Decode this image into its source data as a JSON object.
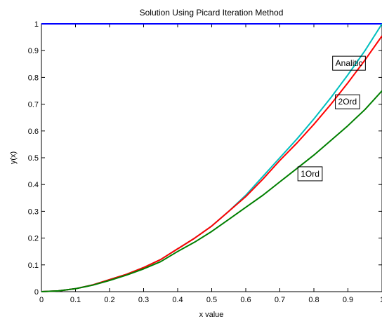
{
  "chart_data": {
    "type": "line",
    "title": "Solution Using Picard Iteration Method",
    "xlabel": "x value",
    "ylabel": "y(x)",
    "xlim": [
      0,
      1
    ],
    "ylim": [
      0,
      1
    ],
    "grid": false,
    "x_ticks": [
      "0",
      "0.1",
      "0.2",
      "0.3",
      "0.4",
      "0.5",
      "0.6",
      "0.7",
      "0.8",
      "0.9",
      "1"
    ],
    "y_ticks": [
      "0",
      "0.1",
      "0.2",
      "0.3",
      "0.4",
      "0.5",
      "0.6",
      "0.7",
      "0.8",
      "0.9",
      "1"
    ],
    "x": [
      0,
      0.05,
      0.1,
      0.15,
      0.2,
      0.25,
      0.3,
      0.35,
      0.4,
      0.45,
      0.5,
      0.55,
      0.6,
      0.65,
      0.7,
      0.75,
      0.8,
      0.85,
      0.9,
      0.95,
      1.0
    ],
    "series": [
      {
        "color": "#0000ff",
        "values": [
          1,
          1,
          1,
          1,
          1,
          1,
          1,
          1,
          1,
          1,
          1,
          1,
          1,
          1,
          1,
          1,
          1,
          1,
          1,
          1,
          1
        ]
      },
      {
        "color": "#00bfbf",
        "values": [
          0,
          0.003,
          0.011,
          0.025,
          0.045,
          0.065,
          0.09,
          0.12,
          0.16,
          0.2,
          0.245,
          0.3,
          0.36,
          0.43,
          0.5,
          0.57,
          0.645,
          0.725,
          0.81,
          0.9,
          1.0
        ]
      },
      {
        "color": "#ff0000",
        "values": [
          0,
          0.003,
          0.011,
          0.025,
          0.045,
          0.065,
          0.09,
          0.12,
          0.16,
          0.2,
          0.245,
          0.3,
          0.355,
          0.42,
          0.49,
          0.555,
          0.625,
          0.7,
          0.78,
          0.865,
          0.955
        ]
      },
      {
        "color": "#007f00",
        "values": [
          0,
          0.003,
          0.011,
          0.024,
          0.042,
          0.062,
          0.085,
          0.112,
          0.15,
          0.185,
          0.225,
          0.27,
          0.315,
          0.36,
          0.41,
          0.46,
          0.51,
          0.565,
          0.62,
          0.68,
          0.75
        ]
      }
    ],
    "annotations": [
      {
        "text": "Analitic",
        "x": 0.855,
        "y": 0.853
      },
      {
        "text": "2Ord",
        "x": 0.863,
        "y": 0.709
      },
      {
        "text": "1Ord",
        "x": 0.753,
        "y": 0.44
      }
    ]
  }
}
